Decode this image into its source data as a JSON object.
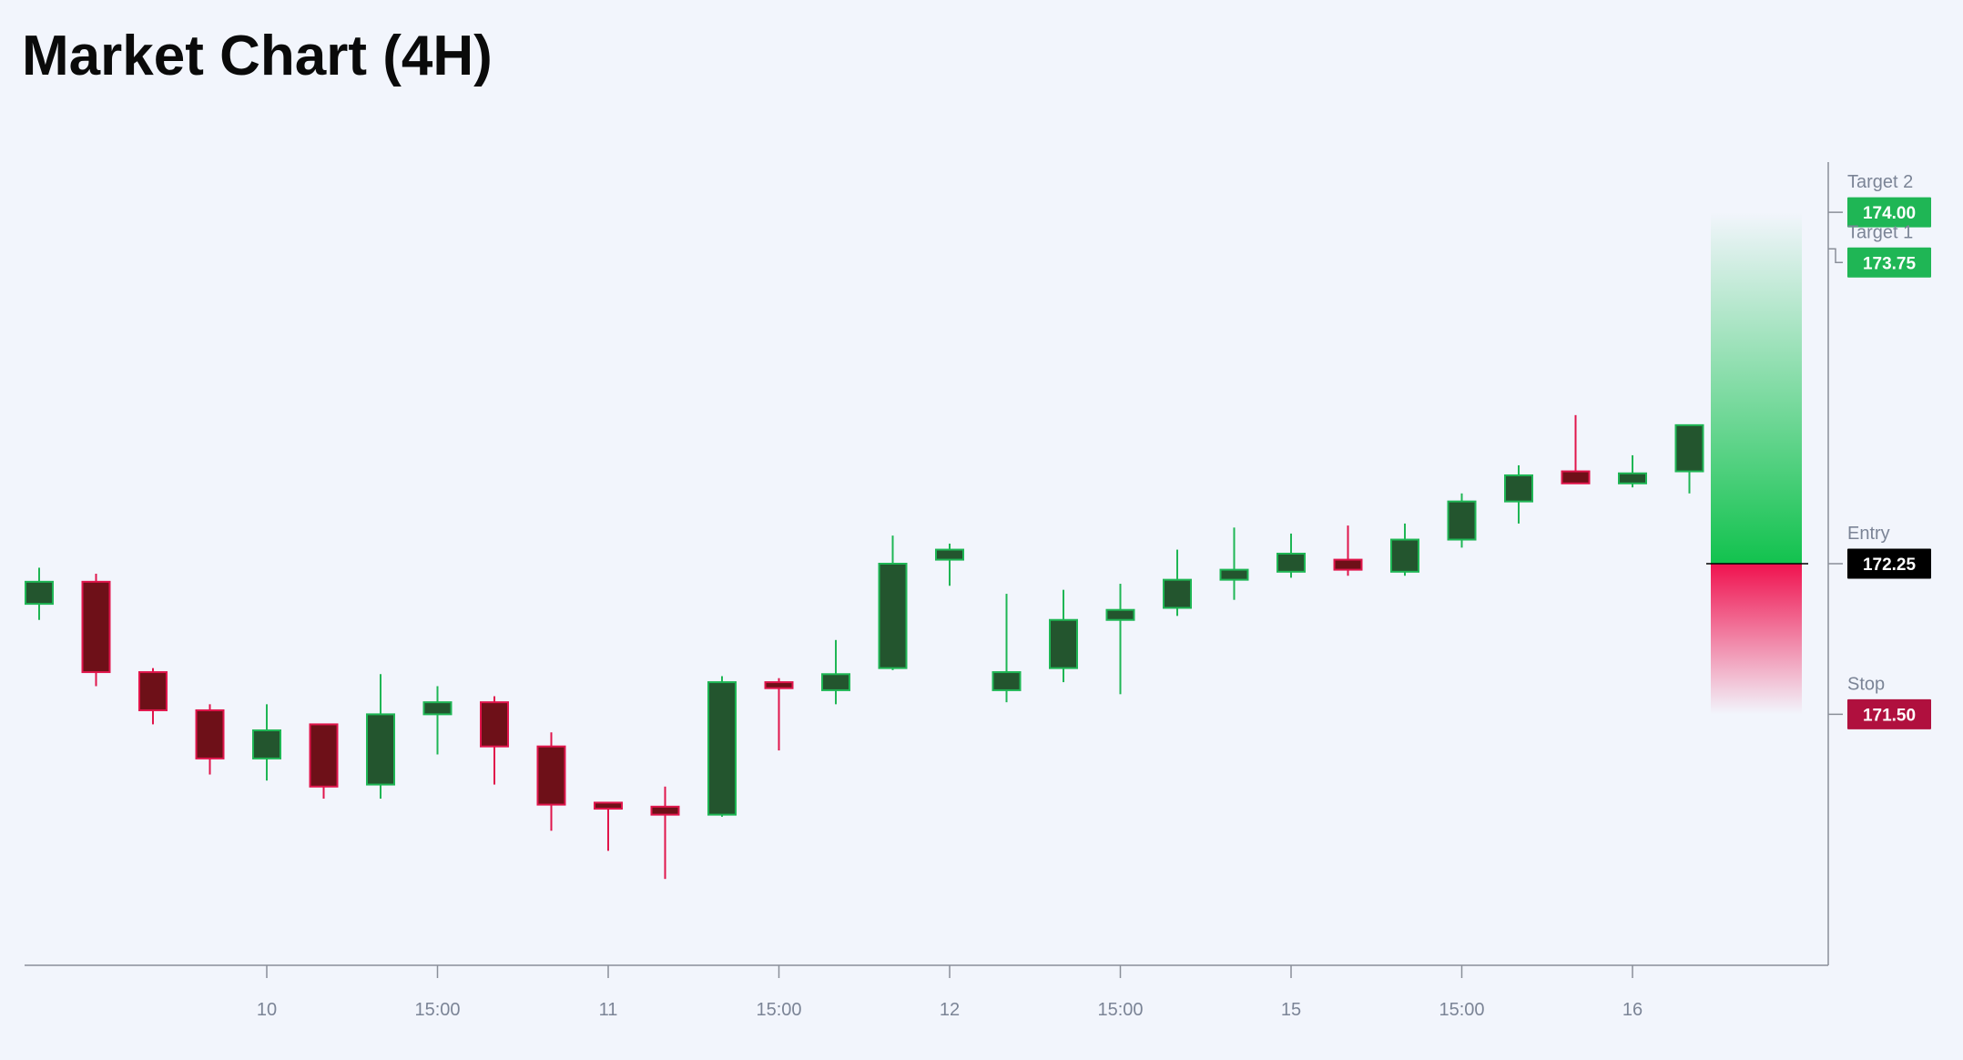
{
  "title": "Market Chart (4H)",
  "chart_data": {
    "type": "candlestick",
    "title": "Market Chart (4H)",
    "x_tick_labels": [
      "10",
      "15:00",
      "11",
      "15:00",
      "12",
      "15:00",
      "15",
      "15:00",
      "16"
    ],
    "ylim": [
      170.25,
      174.25
    ],
    "candles": [
      {
        "open": 172.05,
        "high": 172.23,
        "low": 171.97,
        "close": 172.16
      },
      {
        "open": 172.16,
        "high": 172.2,
        "low": 171.64,
        "close": 171.71
      },
      {
        "open": 171.71,
        "high": 171.73,
        "low": 171.45,
        "close": 171.52
      },
      {
        "open": 171.52,
        "high": 171.55,
        "low": 171.2,
        "close": 171.28
      },
      {
        "open": 171.28,
        "high": 171.55,
        "low": 171.17,
        "close": 171.42
      },
      {
        "open": 171.45,
        "high": 171.45,
        "low": 171.08,
        "close": 171.14
      },
      {
        "open": 171.15,
        "high": 171.7,
        "low": 171.08,
        "close": 171.5
      },
      {
        "open": 171.5,
        "high": 171.64,
        "low": 171.3,
        "close": 171.56
      },
      {
        "open": 171.56,
        "high": 171.59,
        "low": 171.15,
        "close": 171.34
      },
      {
        "open": 171.34,
        "high": 171.41,
        "low": 170.92,
        "close": 171.05
      },
      {
        "open": 171.06,
        "high": 171.06,
        "low": 170.82,
        "close": 171.03
      },
      {
        "open": 171.04,
        "high": 171.14,
        "low": 170.68,
        "close": 171.0
      },
      {
        "open": 171.0,
        "high": 171.69,
        "low": 170.99,
        "close": 171.66
      },
      {
        "open": 171.66,
        "high": 171.68,
        "low": 171.32,
        "close": 171.63
      },
      {
        "open": 171.62,
        "high": 171.87,
        "low": 171.55,
        "close": 171.7
      },
      {
        "open": 171.73,
        "high": 172.39,
        "low": 171.72,
        "close": 172.25
      },
      {
        "open": 172.27,
        "high": 172.35,
        "low": 172.14,
        "close": 172.32
      },
      {
        "open": 171.62,
        "high": 172.1,
        "low": 171.56,
        "close": 171.71
      },
      {
        "open": 171.73,
        "high": 172.12,
        "low": 171.66,
        "close": 171.97
      },
      {
        "open": 171.97,
        "high": 172.15,
        "low": 171.6,
        "close": 172.02
      },
      {
        "open": 172.03,
        "high": 172.32,
        "low": 171.99,
        "close": 172.17
      },
      {
        "open": 172.17,
        "high": 172.43,
        "low": 172.07,
        "close": 172.22
      },
      {
        "open": 172.21,
        "high": 172.4,
        "low": 172.18,
        "close": 172.3
      },
      {
        "open": 172.27,
        "high": 172.44,
        "low": 172.19,
        "close": 172.22
      },
      {
        "open": 172.21,
        "high": 172.45,
        "low": 172.19,
        "close": 172.37
      },
      {
        "open": 172.37,
        "high": 172.6,
        "low": 172.33,
        "close": 172.56
      },
      {
        "open": 172.56,
        "high": 172.74,
        "low": 172.45,
        "close": 172.69
      },
      {
        "open": 172.71,
        "high": 172.99,
        "low": 172.65,
        "close": 172.65
      },
      {
        "open": 172.65,
        "high": 172.79,
        "low": 172.63,
        "close": 172.7
      },
      {
        "open": 172.71,
        "high": 172.92,
        "low": 172.6,
        "close": 172.94
      }
    ],
    "levels": [
      {
        "name": "Target 2",
        "value": "174.00",
        "price": 174.0,
        "color": "#1fb655"
      },
      {
        "name": "Target 1",
        "value": "173.75",
        "price": 173.75,
        "color": "#1fb655"
      },
      {
        "name": "Entry",
        "value": "172.25",
        "price": 172.25,
        "color": "#000000"
      },
      {
        "name": "Stop",
        "value": "171.50",
        "price": 171.5,
        "color": "#b0103e"
      }
    ],
    "zones": {
      "reward": {
        "from": 172.25,
        "to": 174.0,
        "color": "#12c24e"
      },
      "risk": {
        "from": 171.5,
        "to": 172.25,
        "color": "#f0124f"
      }
    },
    "colors": {
      "up_body": "#23552e",
      "up_border": "#1fb655",
      "down_body": "#6e1018",
      "down_border": "#e0154b",
      "axis": "#8a8f99",
      "tick_text": "#7b8496",
      "background": "#f2f5fc"
    }
  }
}
